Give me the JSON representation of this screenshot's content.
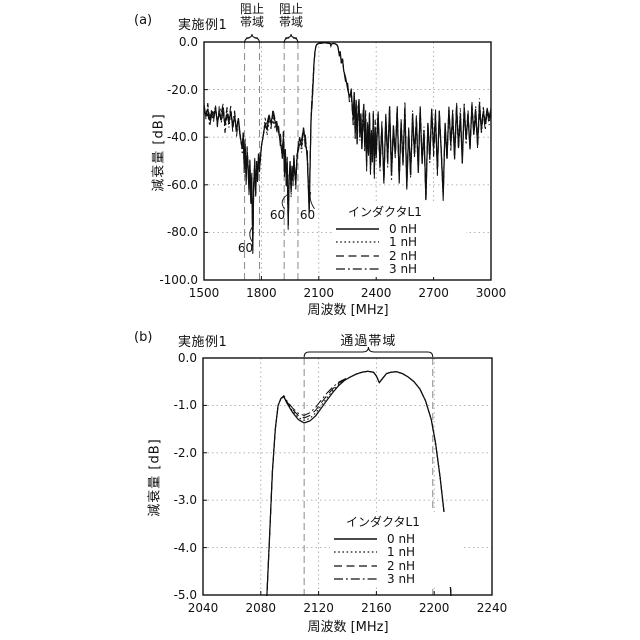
{
  "colors": {
    "background": "#ffffff",
    "line": "#111111",
    "grid": "#aaaaaa",
    "band_line": "#8a8a8a",
    "text": "#111111"
  },
  "chart_data": [
    {
      "id": "a",
      "type": "line",
      "panel_tag": "(a)",
      "title": "実施例1",
      "xlabel": "周波数 [MHz]",
      "ylabel": "減衰量 [dB]",
      "xlim": [
        1500,
        3000
      ],
      "ylim": [
        -100,
        0
      ],
      "xticks": {
        "values": [
          1500,
          1800,
          2100,
          2400,
          2700,
          3000
        ],
        "labels": [
          "1500",
          "1800",
          "2100",
          "2400",
          "2700",
          "3000"
        ]
      },
      "yticks": {
        "values": [
          0,
          -20,
          -40,
          -60,
          -80,
          -100
        ],
        "labels": [
          "0.0",
          "-20.0",
          "-40.0",
          "-60.0",
          "-80.0",
          "-100.0"
        ]
      },
      "grid": true,
      "legend": {
        "title": "インダクタL1",
        "position": "inside-lower-right"
      },
      "bands": [
        {
          "label": "阻止帯域",
          "label_lines": [
            "阻止",
            "帯域"
          ],
          "range_mhz": [
            1712,
            1790
          ]
        },
        {
          "label": "阻止帯域",
          "label_lines": [
            "阻止",
            "帯域"
          ],
          "range_mhz": [
            1919,
            1991
          ]
        }
      ],
      "annotations": [
        {
          "text": "60",
          "label_mhz": 1717,
          "label_db": -87,
          "tip_mhz": 1760,
          "tip_db": -77
        },
        {
          "text": "60",
          "label_mhz": 1884,
          "label_db": -73,
          "tip_mhz": 1938,
          "tip_db": -64
        },
        {
          "text": "60",
          "label_mhz": 2041,
          "label_db": -73,
          "tip_mhz": 2058,
          "tip_db": -63
        }
      ],
      "series": [
        {
          "name": "0 nH",
          "line_style": "solid",
          "jitter_db": 0
        },
        {
          "name": "1 nH",
          "line_style": "dotted",
          "jitter_db": 5
        },
        {
          "name": "2 nH",
          "line_style": "dashed",
          "jitter_db": 6
        },
        {
          "name": "3 nH",
          "line_style": "dashdot",
          "jitter_db": 7
        }
      ],
      "base_points": [
        [
          1500,
          -27
        ],
        [
          1510,
          -31
        ],
        [
          1520,
          -28
        ],
        [
          1530,
          -33
        ],
        [
          1540,
          -29
        ],
        [
          1550,
          -32
        ],
        [
          1560,
          -28
        ],
        [
          1570,
          -34
        ],
        [
          1580,
          -30
        ],
        [
          1590,
          -33
        ],
        [
          1600,
          -29
        ],
        [
          1610,
          -35
        ],
        [
          1620,
          -30
        ],
        [
          1630,
          -34
        ],
        [
          1640,
          -29
        ],
        [
          1650,
          -36
        ],
        [
          1660,
          -31
        ],
        [
          1670,
          -37
        ],
        [
          1680,
          -32
        ],
        [
          1690,
          -40
        ],
        [
          1700,
          -45
        ],
        [
          1705,
          -38
        ],
        [
          1710,
          -52
        ],
        [
          1715,
          -43
        ],
        [
          1720,
          -58
        ],
        [
          1725,
          -46
        ],
        [
          1730,
          -53
        ],
        [
          1735,
          -62
        ],
        [
          1740,
          -50
        ],
        [
          1745,
          -68
        ],
        [
          1750,
          -57
        ],
        [
          1755,
          -86
        ],
        [
          1760,
          -60
        ],
        [
          1765,
          -52
        ],
        [
          1770,
          -64
        ],
        [
          1775,
          -50
        ],
        [
          1780,
          -58
        ],
        [
          1785,
          -47
        ],
        [
          1790,
          -52
        ],
        [
          1800,
          -44
        ],
        [
          1810,
          -39
        ],
        [
          1820,
          -34
        ],
        [
          1830,
          -37
        ],
        [
          1840,
          -31
        ],
        [
          1850,
          -34
        ],
        [
          1860,
          -30
        ],
        [
          1870,
          -33
        ],
        [
          1880,
          -35
        ],
        [
          1890,
          -38
        ],
        [
          1900,
          -42
        ],
        [
          1910,
          -48
        ],
        [
          1915,
          -40
        ],
        [
          1920,
          -55
        ],
        [
          1925,
          -45
        ],
        [
          1930,
          -60
        ],
        [
          1935,
          -50
        ],
        [
          1940,
          -77
        ],
        [
          1945,
          -58
        ],
        [
          1950,
          -50
        ],
        [
          1955,
          -63
        ],
        [
          1960,
          -52
        ],
        [
          1965,
          -58
        ],
        [
          1970,
          -48
        ],
        [
          1975,
          -55
        ],
        [
          1980,
          -60
        ],
        [
          1985,
          -50
        ],
        [
          1990,
          -45
        ],
        [
          2000,
          -40
        ],
        [
          2010,
          -44
        ],
        [
          2020,
          -36
        ],
        [
          2030,
          -42
        ],
        [
          2040,
          -48
        ],
        [
          2050,
          -72
        ],
        [
          2055,
          -50
        ],
        [
          2060,
          -32
        ],
        [
          2065,
          -25
        ],
        [
          2070,
          -17
        ],
        [
          2075,
          -9
        ],
        [
          2080,
          -4
        ],
        [
          2085,
          -1.8
        ],
        [
          2090,
          -1
        ],
        [
          2100,
          -0.6
        ],
        [
          2110,
          -0.5
        ],
        [
          2120,
          -0.4
        ],
        [
          2130,
          -0.35
        ],
        [
          2140,
          -0.4
        ],
        [
          2150,
          -0.5
        ],
        [
          2160,
          -0.7
        ],
        [
          2163,
          -1.6
        ],
        [
          2166,
          -0.9
        ],
        [
          2175,
          -0.6
        ],
        [
          2185,
          -0.7
        ],
        [
          2195,
          -1.2
        ],
        [
          2200,
          -2
        ],
        [
          2208,
          -6
        ],
        [
          2212,
          -4
        ],
        [
          2218,
          -9
        ],
        [
          2224,
          -7
        ],
        [
          2230,
          -12
        ],
        [
          2240,
          -15
        ],
        [
          2250,
          -19
        ],
        [
          2260,
          -23
        ],
        [
          2270,
          -21
        ],
        [
          2280,
          -32
        ],
        [
          2285,
          -21
        ],
        [
          2290,
          -38
        ],
        [
          2295,
          -25
        ],
        [
          2300,
          -43
        ],
        [
          2305,
          -30
        ],
        [
          2310,
          -24
        ],
        [
          2315,
          -40
        ],
        [
          2320,
          -30
        ],
        [
          2325,
          -45
        ],
        [
          2330,
          -34
        ],
        [
          2335,
          -26
        ],
        [
          2340,
          -44
        ],
        [
          2345,
          -32
        ],
        [
          2350,
          -52
        ],
        [
          2355,
          -35
        ],
        [
          2360,
          -47
        ],
        [
          2365,
          -30
        ],
        [
          2370,
          -53
        ],
        [
          2375,
          -38
        ],
        [
          2380,
          -48
        ],
        [
          2385,
          -30
        ],
        [
          2390,
          -55
        ],
        [
          2395,
          -36
        ],
        [
          2400,
          -48
        ],
        [
          2410,
          -30
        ],
        [
          2420,
          -52
        ],
        [
          2430,
          -36
        ],
        [
          2440,
          -58
        ],
        [
          2450,
          -31
        ],
        [
          2460,
          -50
        ],
        [
          2470,
          -27
        ],
        [
          2480,
          -56
        ],
        [
          2490,
          -35
        ],
        [
          2500,
          -47
        ],
        [
          2510,
          -29
        ],
        [
          2520,
          -58
        ],
        [
          2530,
          -34
        ],
        [
          2540,
          -51
        ],
        [
          2550,
          -28
        ],
        [
          2560,
          -61
        ],
        [
          2570,
          -37
        ],
        [
          2580,
          -56
        ],
        [
          2590,
          -30
        ],
        [
          2600,
          -47
        ],
        [
          2610,
          -33
        ],
        [
          2620,
          -55
        ],
        [
          2630,
          -28
        ],
        [
          2640,
          -51
        ],
        [
          2650,
          -37
        ],
        [
          2660,
          -66
        ],
        [
          2670,
          -34
        ],
        [
          2680,
          -49
        ],
        [
          2690,
          -28
        ],
        [
          2700,
          -45
        ],
        [
          2710,
          -31
        ],
        [
          2720,
          -54
        ],
        [
          2730,
          -29
        ],
        [
          2740,
          -47
        ],
        [
          2750,
          -65
        ],
        [
          2760,
          -34
        ],
        [
          2770,
          -49
        ],
        [
          2780,
          -28
        ],
        [
          2790,
          -43
        ],
        [
          2800,
          -31
        ],
        [
          2810,
          -49
        ],
        [
          2820,
          -27
        ],
        [
          2830,
          -44
        ],
        [
          2840,
          -30
        ],
        [
          2850,
          -51
        ],
        [
          2860,
          -28
        ],
        [
          2870,
          -41
        ],
        [
          2880,
          -31
        ],
        [
          2890,
          -45
        ],
        [
          2900,
          -27
        ],
        [
          2910,
          -39
        ],
        [
          2920,
          -30
        ],
        [
          2930,
          -43
        ],
        [
          2940,
          -26
        ],
        [
          2950,
          -37
        ],
        [
          2960,
          -29
        ],
        [
          2970,
          -34
        ],
        [
          2980,
          -28
        ],
        [
          2990,
          -32
        ],
        [
          3000,
          -28
        ]
      ]
    },
    {
      "id": "b",
      "type": "line",
      "panel_tag": "(b)",
      "title": "実施例1",
      "xlabel": "周波数 [MHz]",
      "ylabel": "減衰量 [dB]",
      "xlim": [
        2040,
        2240
      ],
      "ylim": [
        -5,
        0
      ],
      "xticks": {
        "values": [
          2040,
          2080,
          2120,
          2160,
          2200,
          2240
        ],
        "labels": [
          "2040",
          "2080",
          "2120",
          "2160",
          "2200",
          "2240"
        ]
      },
      "yticks": {
        "values": [
          0,
          -1,
          -2,
          -3,
          -4,
          -5
        ],
        "labels": [
          "0.0",
          "-1.0",
          "-2.0",
          "-3.0",
          "-4.0",
          "-5.0"
        ]
      },
      "grid": true,
      "legend": {
        "title": "インダクタL1",
        "position": "inside-lower-middle"
      },
      "bands": [
        {
          "label": "通過帯域",
          "label_lines": [
            "通過帯域"
          ],
          "range_mhz": [
            2110,
            2199
          ]
        }
      ],
      "annotations": [],
      "variation_window_mhz": [
        2094,
        2140
      ],
      "series": [
        {
          "name": "0 nH",
          "line_style": "solid",
          "dip_offset_db": 0
        },
        {
          "name": "1 nH",
          "line_style": "dotted",
          "dip_offset_db": 0.06
        },
        {
          "name": "2 nH",
          "line_style": "dashed",
          "dip_offset_db": 0.12
        },
        {
          "name": "3 nH",
          "line_style": "dashdot",
          "dip_offset_db": 0.18
        }
      ],
      "base_points": [
        [
          2084,
          -5.15
        ],
        [
          2086,
          -3.8
        ],
        [
          2088,
          -2.4
        ],
        [
          2090,
          -1.5
        ],
        [
          2092,
          -1.0
        ],
        [
          2094,
          -0.85
        ],
        [
          2096,
          -0.82
        ],
        [
          2098,
          -0.95
        ],
        [
          2102,
          -1.15
        ],
        [
          2106,
          -1.3
        ],
        [
          2110,
          -1.37
        ],
        [
          2114,
          -1.33
        ],
        [
          2118,
          -1.22
        ],
        [
          2122,
          -1.05
        ],
        [
          2126,
          -0.88
        ],
        [
          2130,
          -0.72
        ],
        [
          2134,
          -0.58
        ],
        [
          2138,
          -0.47
        ],
        [
          2142,
          -0.4
        ],
        [
          2146,
          -0.34
        ],
        [
          2150,
          -0.3
        ],
        [
          2154,
          -0.28
        ],
        [
          2158,
          -0.3
        ],
        [
          2160,
          -0.38
        ],
        [
          2162,
          -0.52
        ],
        [
          2164,
          -0.44
        ],
        [
          2167,
          -0.33
        ],
        [
          2170,
          -0.3
        ],
        [
          2174,
          -0.29
        ],
        [
          2178,
          -0.33
        ],
        [
          2182,
          -0.4
        ],
        [
          2186,
          -0.5
        ],
        [
          2190,
          -0.65
        ],
        [
          2194,
          -0.9
        ],
        [
          2198,
          -1.3
        ],
        [
          2201,
          -1.8
        ],
        [
          2204,
          -2.5
        ],
        [
          2207,
          -3.3
        ],
        [
          2210,
          -4.3
        ],
        [
          2212,
          -5.15
        ]
      ]
    }
  ]
}
